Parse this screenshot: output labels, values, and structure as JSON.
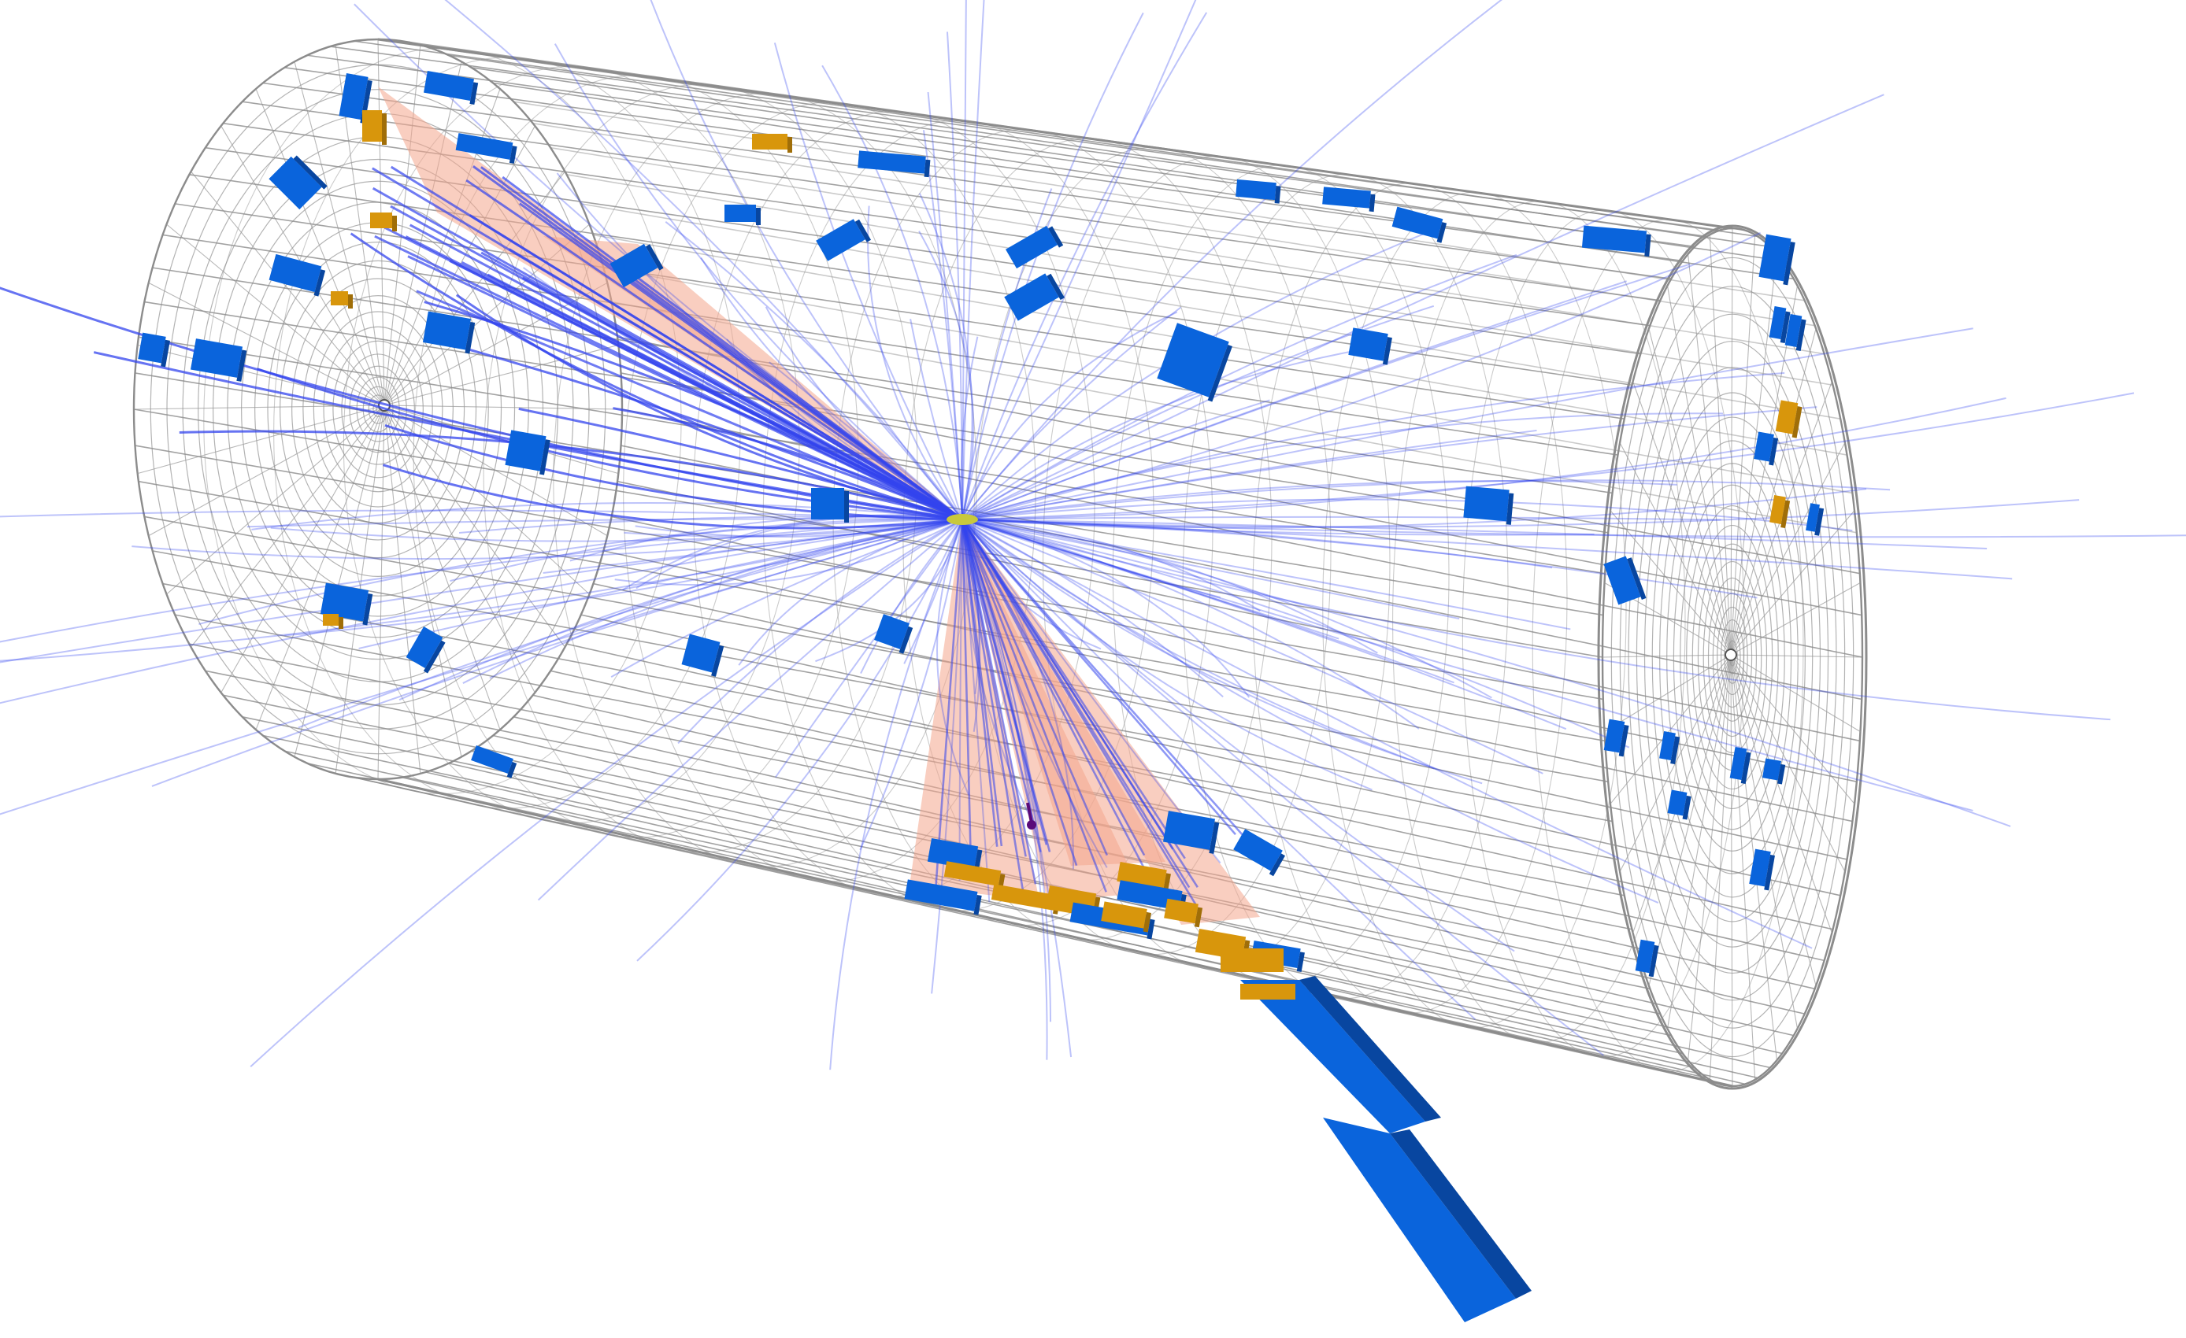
{
  "event_display": {
    "colors": {
      "background": "#ffffff",
      "detector_wireframe": "#8c8c8c",
      "endcap_rings": "#9a9a9a",
      "tracks": "#3344ee",
      "jet_cones": "#f4a58c",
      "hcal_towers": "#0a64dc",
      "hcal_towers_dark": "#0846a0",
      "ecal_deposits": "#d8960c",
      "vertex": "#c8c83c",
      "muon_marker": "#5a0a7a"
    },
    "icons": {
      "detector": "cylinder-wireframe-icon",
      "vertex": "interaction-point-icon"
    }
  }
}
